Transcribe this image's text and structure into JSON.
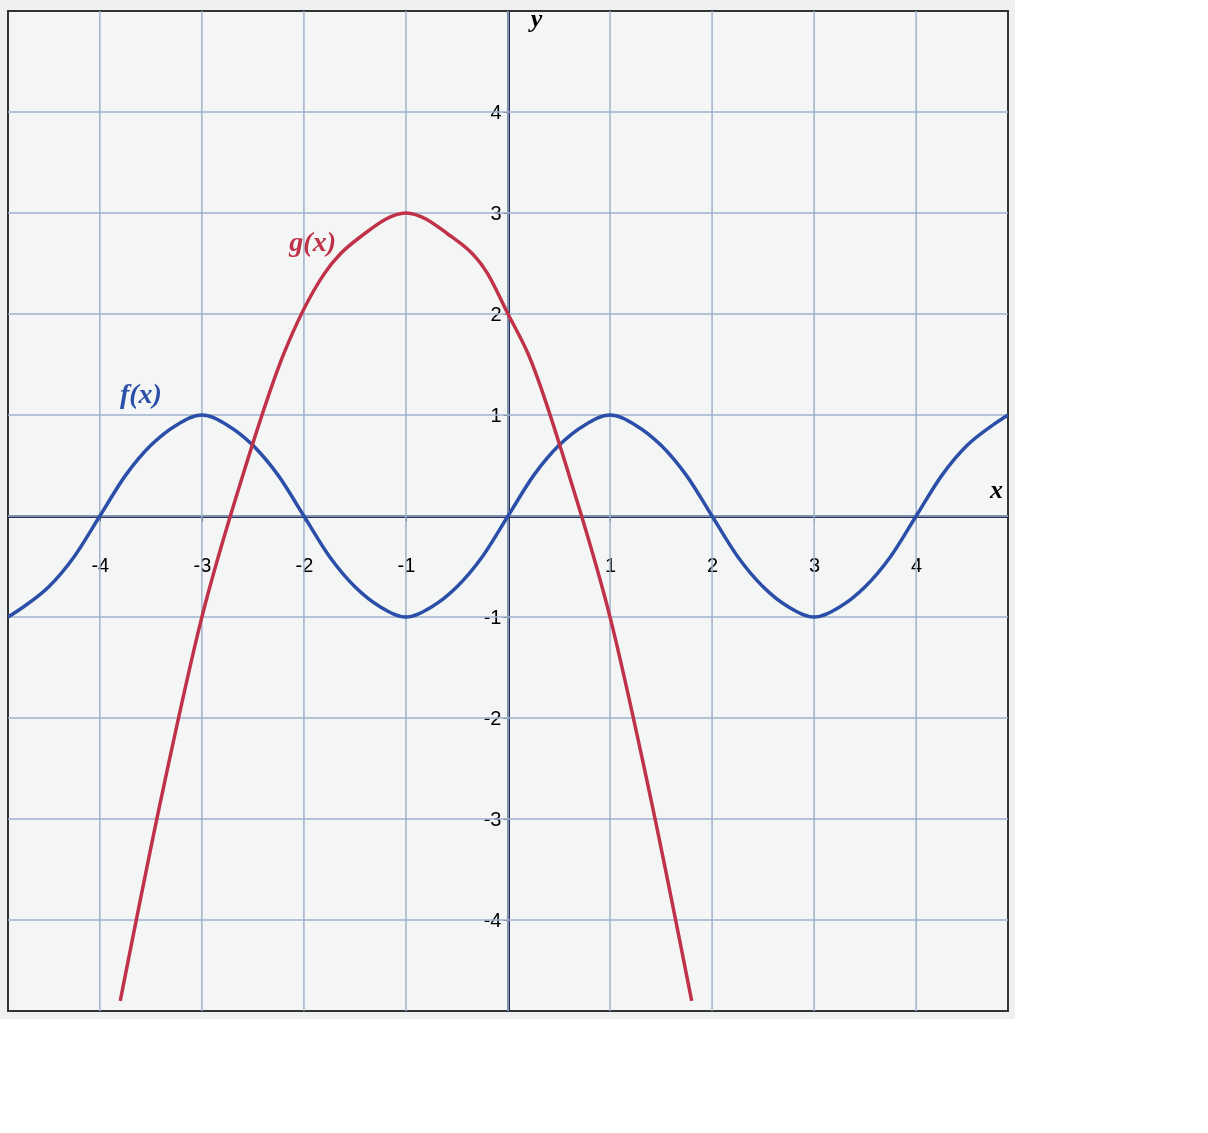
{
  "chart_data": {
    "type": "line",
    "xlabel": "x",
    "ylabel": "y",
    "xlim": [
      -4.9,
      4.9
    ],
    "ylim": [
      -4.9,
      5
    ],
    "xticks": [
      -4,
      -3,
      -2,
      -1,
      1,
      2,
      3,
      4
    ],
    "yticks": [
      -4,
      -3,
      -2,
      -1,
      1,
      2,
      3,
      4
    ],
    "grid": true,
    "line_style": "solid",
    "marker": "none",
    "series": [
      {
        "name": "f(x)",
        "color": "#2b4fa8",
        "x": [
          -4.9,
          -4.75,
          -4.5,
          -4.25,
          -4,
          -3.75,
          -3.5,
          -3.25,
          -3,
          -2.75,
          -2.5,
          -2.25,
          -2,
          -1.75,
          -1.5,
          -1.25,
          -1,
          -0.75,
          -0.5,
          -0.25,
          0,
          0.25,
          0.5,
          0.75,
          1,
          1.25,
          1.5,
          1.75,
          2,
          2.25,
          2.5,
          2.75,
          3,
          3.25,
          3.5,
          3.75,
          4,
          4.25,
          4.5,
          4.75,
          4.9
        ],
        "values": [
          -1,
          -0.9,
          -0.7,
          -0.4,
          0,
          0.4,
          0.7,
          0.9,
          1,
          0.9,
          0.7,
          0.4,
          0,
          -0.4,
          -0.7,
          -0.9,
          -1,
          -0.9,
          -0.7,
          -0.4,
          0,
          0.4,
          0.7,
          0.9,
          1,
          0.9,
          0.7,
          0.4,
          0,
          -0.4,
          -0.7,
          -0.9,
          -1,
          -0.9,
          -0.7,
          -0.4,
          0,
          0.4,
          0.7,
          0.9,
          1
        ]
      },
      {
        "name": "g(x)",
        "color": "#c0324a",
        "x": [
          -3.8,
          -3.4,
          -3,
          -2.6,
          -2.2,
          -1.8,
          -1.4,
          -1,
          -0.6,
          -0.2,
          0,
          0.2,
          0.6,
          1,
          1.4,
          1.8
        ],
        "values": [
          -4.8,
          -2.8,
          -1,
          0.4,
          1.6,
          2.4,
          2.8,
          3,
          2.8,
          2.4,
          2,
          1.6,
          0.4,
          -1,
          -2.8,
          -4.8
        ]
      }
    ]
  }
}
